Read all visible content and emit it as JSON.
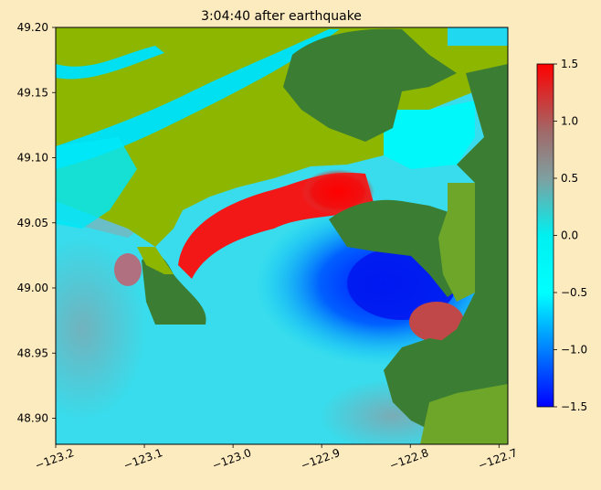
{
  "chart_data": {
    "type": "heatmap",
    "title": "3:04:40 after earthquake",
    "xlabel": "",
    "ylabel": "",
    "xlim": [
      -123.2,
      -122.69
    ],
    "ylim": [
      48.88,
      49.2
    ],
    "xticks": [
      -123.2,
      -123.1,
      -123.0,
      -122.9,
      -122.8,
      -122.7
    ],
    "xtick_labels": [
      "−123.2",
      "−123.1",
      "−123.0",
      "−122.9",
      "−122.8",
      "−122.7"
    ],
    "yticks": [
      48.9,
      48.95,
      49.0,
      49.05,
      49.1,
      49.15,
      49.2
    ],
    "ytick_labels": [
      "48.90",
      "48.95",
      "49.00",
      "49.05",
      "49.10",
      "49.15",
      "49.20"
    ],
    "colorbar": {
      "range": [
        -1.5,
        1.5
      ],
      "ticks": [
        -1.5,
        -1.0,
        -0.5,
        0.0,
        0.5,
        1.0,
        1.5
      ],
      "tick_labels": [
        "−1.5",
        "−1.0",
        "−0.5",
        "0.0",
        "0.5",
        "1.0",
        "1.5"
      ],
      "colors": [
        "#0000ff",
        "#00ffff",
        "#7f7f7f",
        "#ff0000"
      ]
    },
    "land_colors": [
      "#8db600",
      "#3a7d33"
    ],
    "grid": false
  }
}
